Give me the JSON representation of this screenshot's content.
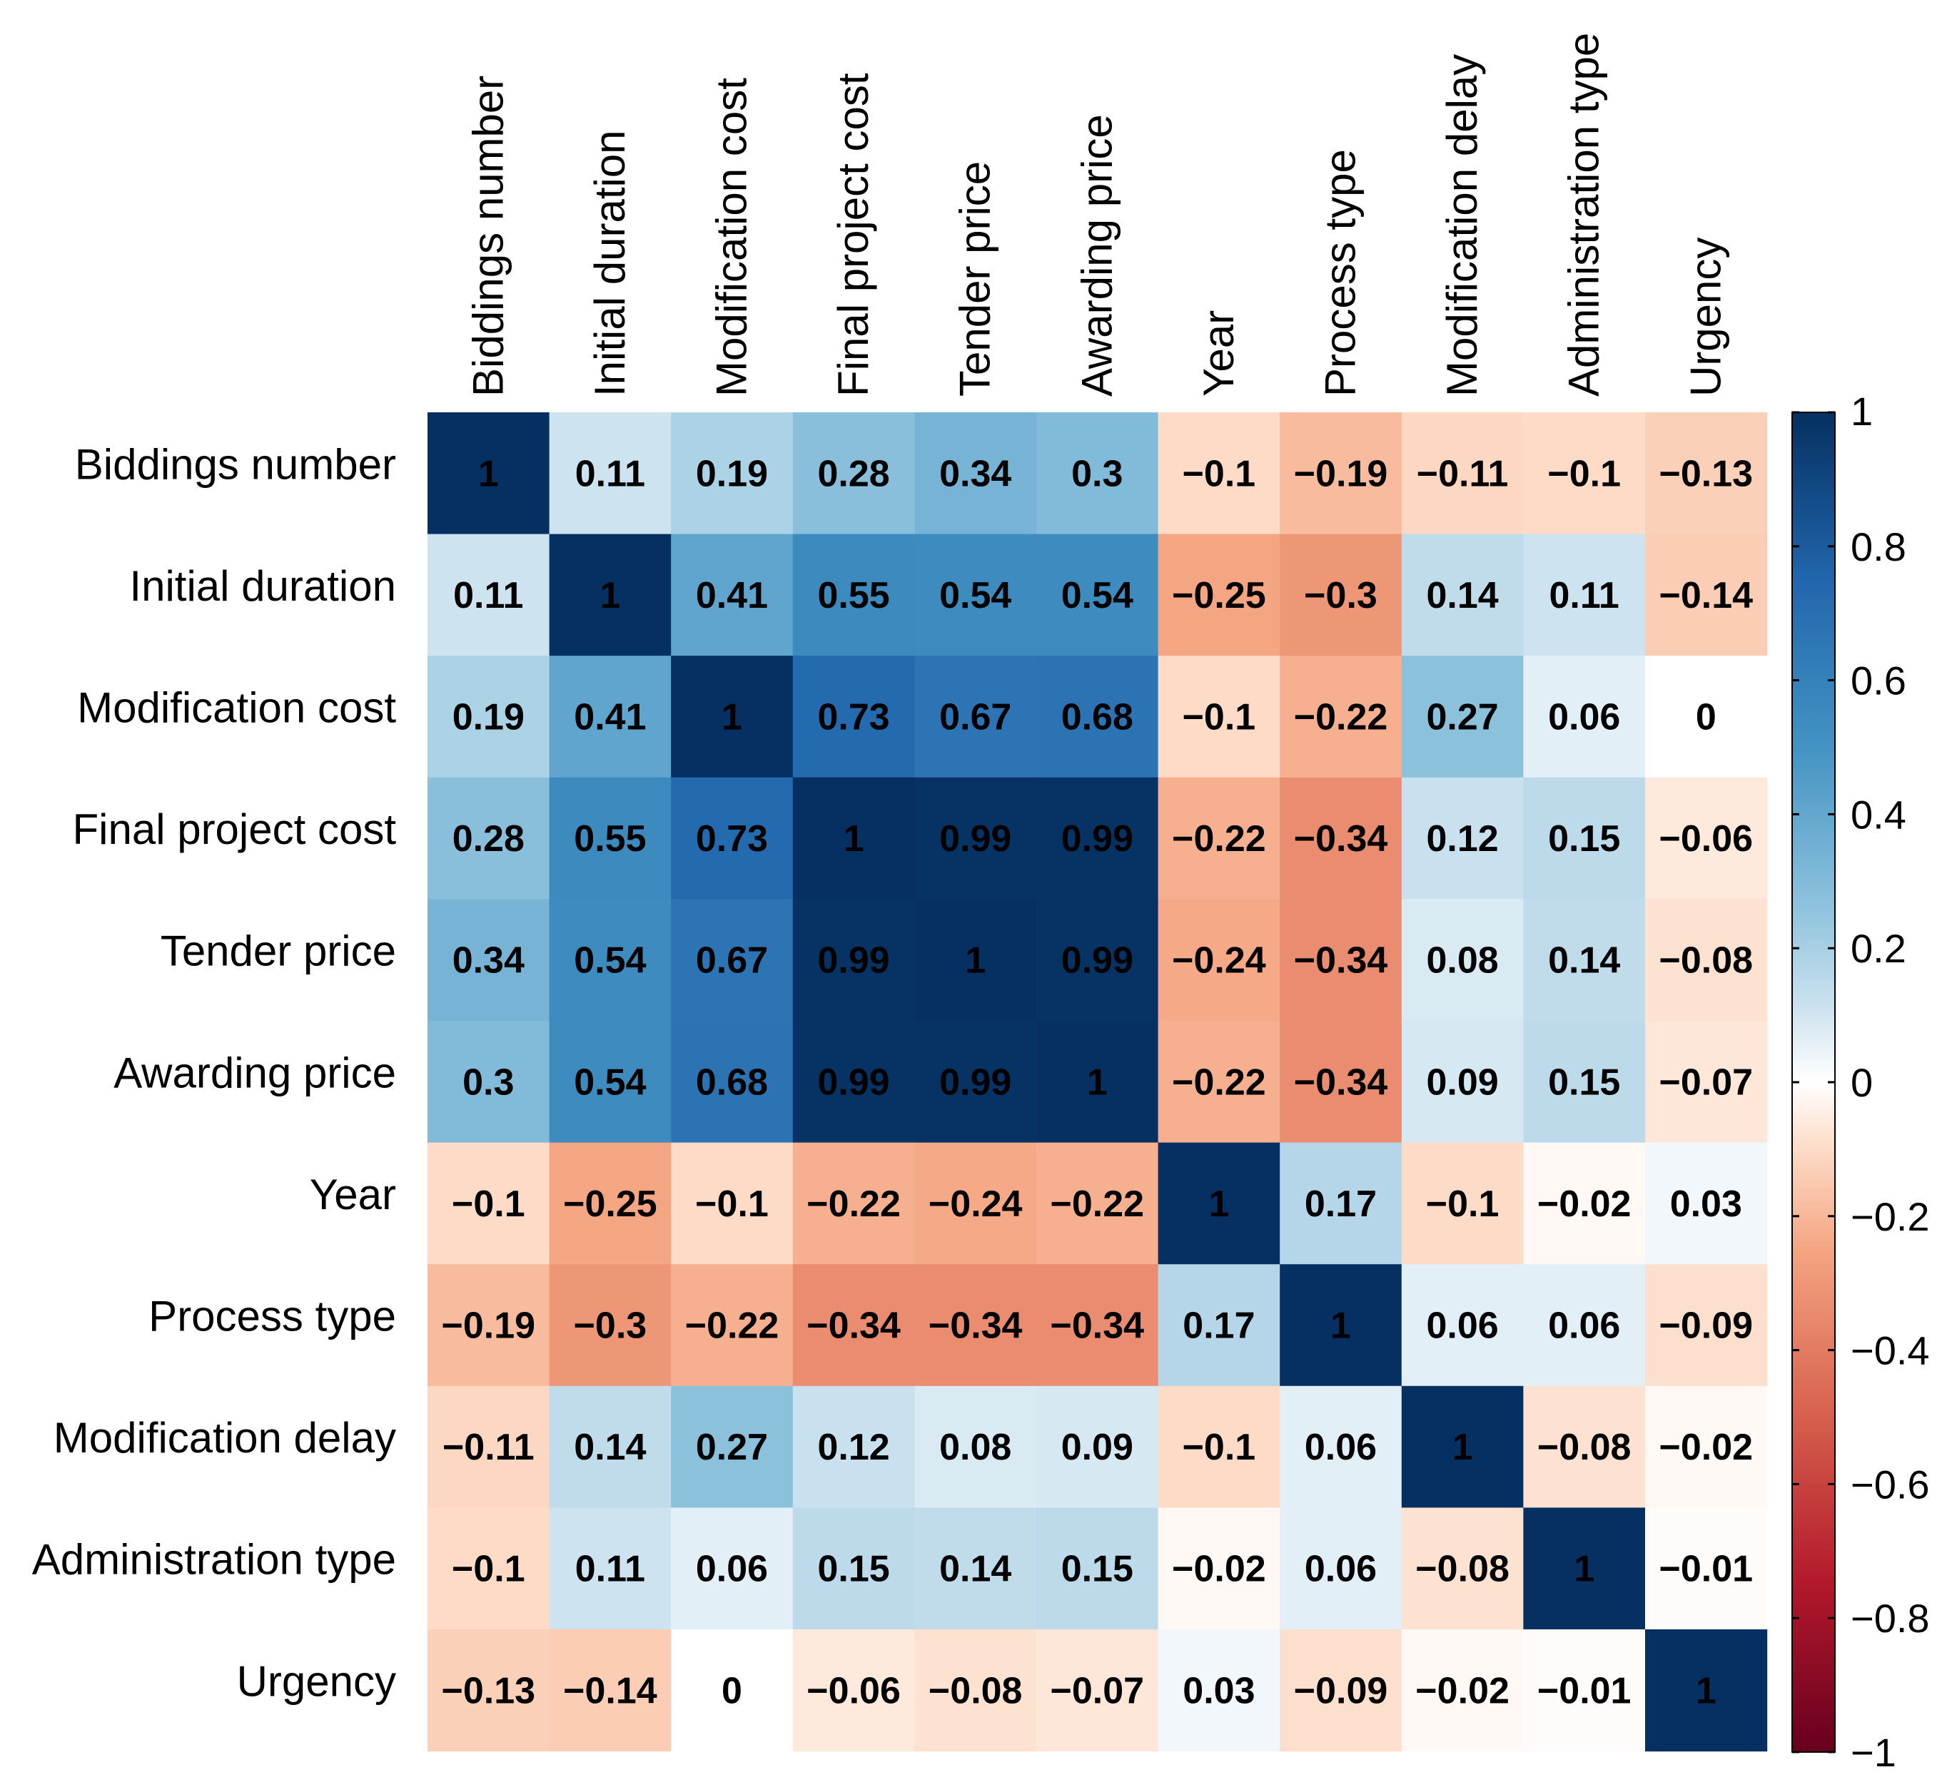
{
  "chart_data": {
    "type": "heatmap",
    "title": "",
    "variables": [
      "Biddings number",
      "Initial duration",
      "Modification cost",
      "Final project cost",
      "Tender price",
      "Awarding price",
      "Year",
      "Process type",
      "Modification delay",
      "Administration type",
      "Urgency"
    ],
    "matrix": [
      [
        1,
        0.11,
        0.19,
        0.28,
        0.34,
        0.3,
        -0.1,
        -0.19,
        -0.11,
        -0.1,
        -0.13
      ],
      [
        0.11,
        1,
        0.41,
        0.55,
        0.54,
        0.54,
        -0.25,
        -0.3,
        0.14,
        0.11,
        -0.14
      ],
      [
        0.19,
        0.41,
        1,
        0.73,
        0.67,
        0.68,
        -0.1,
        -0.22,
        0.27,
        0.06,
        0
      ],
      [
        0.28,
        0.55,
        0.73,
        1,
        0.99,
        0.99,
        -0.22,
        -0.34,
        0.12,
        0.15,
        -0.06
      ],
      [
        0.34,
        0.54,
        0.67,
        0.99,
        1,
        0.99,
        -0.24,
        -0.34,
        0.08,
        0.14,
        -0.08
      ],
      [
        0.3,
        0.54,
        0.68,
        0.99,
        0.99,
        1,
        -0.22,
        -0.34,
        0.09,
        0.15,
        -0.07
      ],
      [
        -0.1,
        -0.25,
        -0.1,
        -0.22,
        -0.24,
        -0.22,
        1,
        0.17,
        -0.1,
        -0.02,
        0.03
      ],
      [
        -0.19,
        -0.3,
        -0.22,
        -0.34,
        -0.34,
        -0.34,
        0.17,
        1,
        0.06,
        0.06,
        -0.09
      ],
      [
        -0.11,
        0.14,
        0.27,
        0.12,
        0.08,
        0.09,
        -0.1,
        0.06,
        1,
        -0.08,
        -0.02
      ],
      [
        -0.1,
        0.11,
        0.06,
        0.15,
        0.14,
        0.15,
        -0.02,
        0.06,
        -0.08,
        1,
        -0.01
      ],
      [
        -0.13,
        -0.14,
        0,
        -0.06,
        -0.08,
        -0.07,
        0.03,
        -0.09,
        -0.02,
        -0.01,
        1
      ]
    ],
    "color_scale": {
      "min": -1,
      "max": 1,
      "ticks": [
        "1",
        "0.8",
        "0.6",
        "0.4",
        "0.2",
        "0",
        "−0.2",
        "−0.4",
        "−0.6",
        "−0.8",
        "−1"
      ],
      "tick_values": [
        1,
        0.8,
        0.6,
        0.4,
        0.2,
        0,
        -0.2,
        -0.4,
        -0.6,
        -0.8,
        -1
      ],
      "stops": [
        {
          "value": -1,
          "color": "#67001F"
        },
        {
          "value": -0.75,
          "color": "#B2182B"
        },
        {
          "value": -0.5,
          "color": "#D6604D"
        },
        {
          "value": -0.25,
          "color": "#F4A582"
        },
        {
          "value": -0.1,
          "color": "#FDDBC7"
        },
        {
          "value": 0,
          "color": "#FFFFFF"
        },
        {
          "value": 0.1,
          "color": "#D1E5F0"
        },
        {
          "value": 0.25,
          "color": "#92C5DE"
        },
        {
          "value": 0.5,
          "color": "#4393C3"
        },
        {
          "value": 0.75,
          "color": "#2166AC"
        },
        {
          "value": 1,
          "color": "#053061"
        }
      ]
    },
    "legend_position": "right",
    "xlabel": "",
    "ylabel": ""
  }
}
